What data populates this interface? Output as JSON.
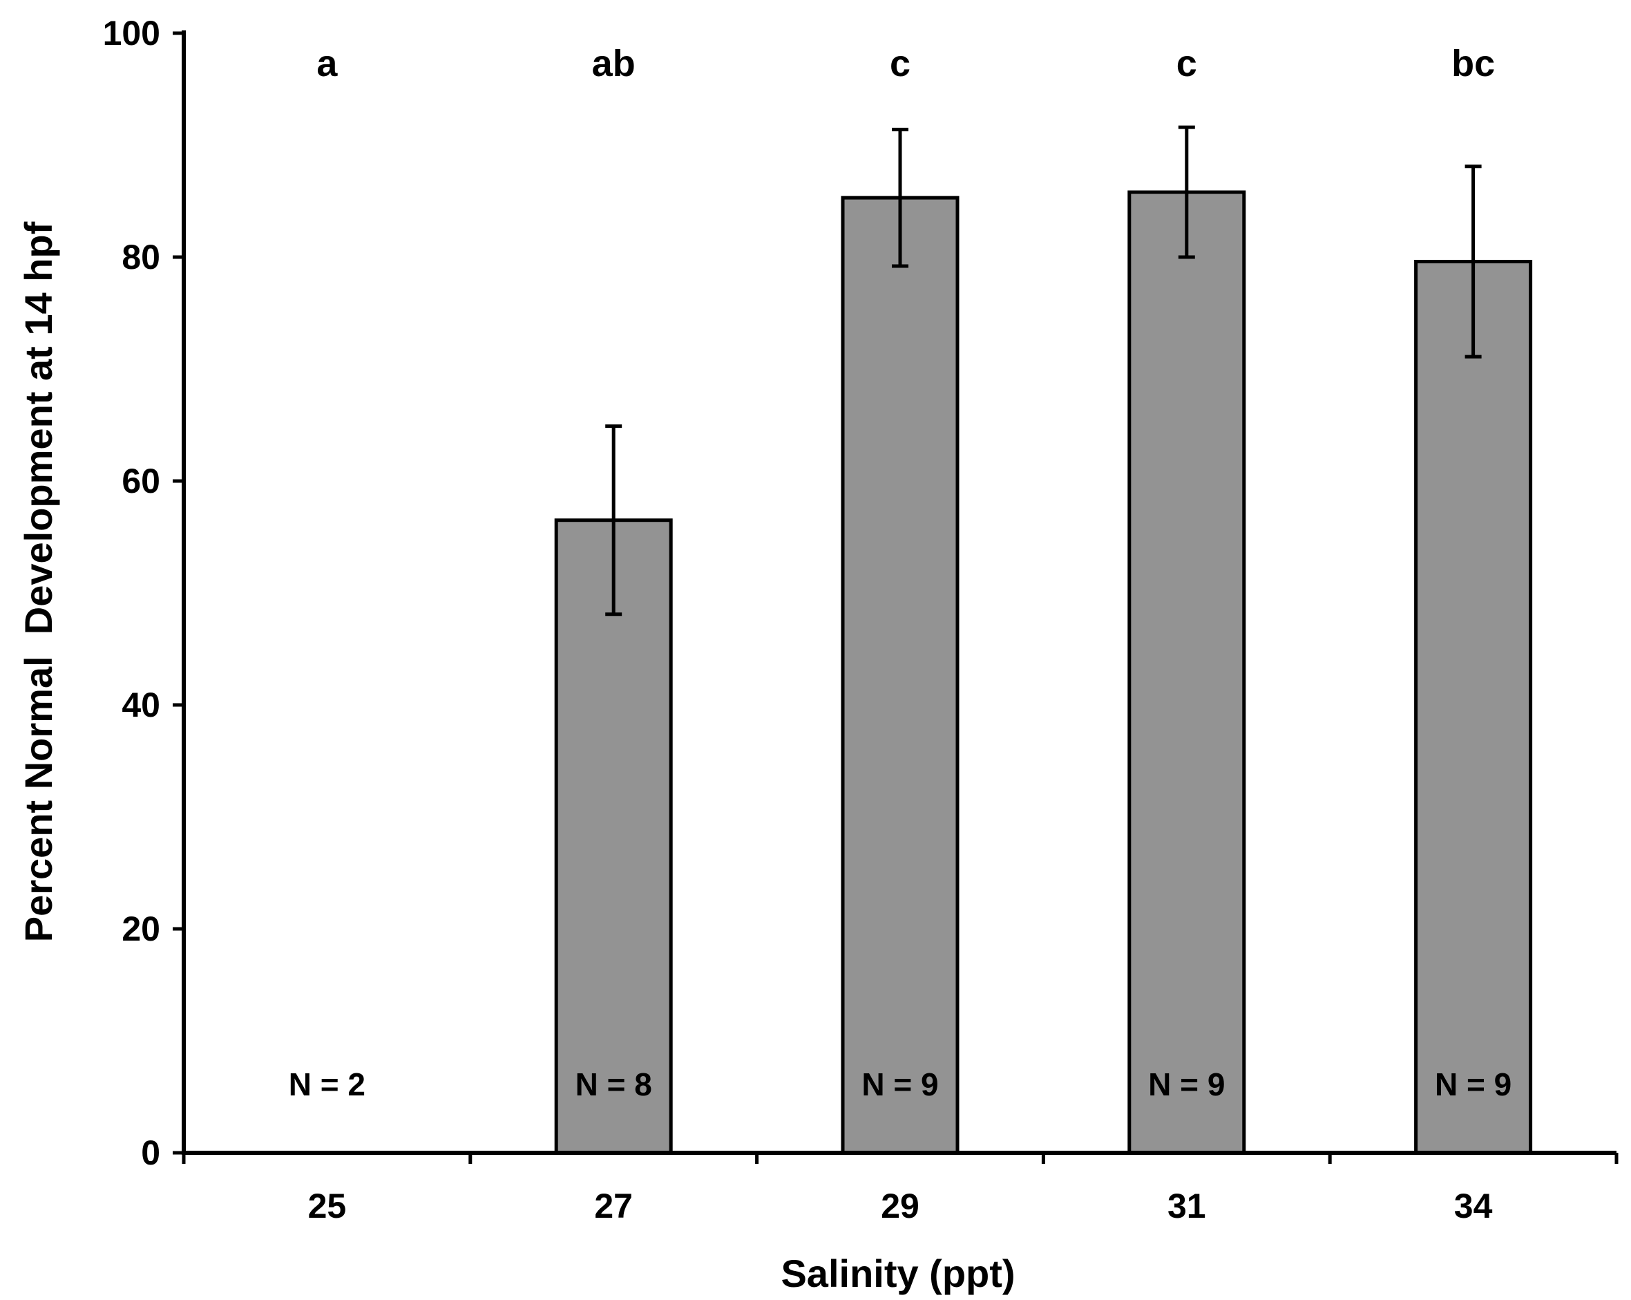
{
  "chart_data": {
    "type": "bar",
    "title": "",
    "xlabel": "Salinity (ppt)",
    "ylabel": "Percent Normal  Development at 14 hpf",
    "categories": [
      "25",
      "27",
      "29",
      "31",
      "34"
    ],
    "values": [
      0,
      56.5,
      85.3,
      85.8,
      79.6
    ],
    "error": [
      0,
      8.4,
      6.1,
      5.8,
      8.5
    ],
    "significance_letters": [
      "a",
      "ab",
      "c",
      "c",
      "bc"
    ],
    "sample_sizes": [
      "N = 2",
      "N = 8",
      "N = 9",
      "N = 9",
      "N = 9"
    ],
    "ylim": [
      0,
      100
    ],
    "yticks": [
      0,
      20,
      40,
      60,
      80,
      100
    ],
    "grid": false,
    "legend": "none",
    "colors": {
      "bar_fill": "#939393",
      "bar_stroke": "#000000",
      "axis": "#000000",
      "error_bar": "#000000"
    }
  }
}
